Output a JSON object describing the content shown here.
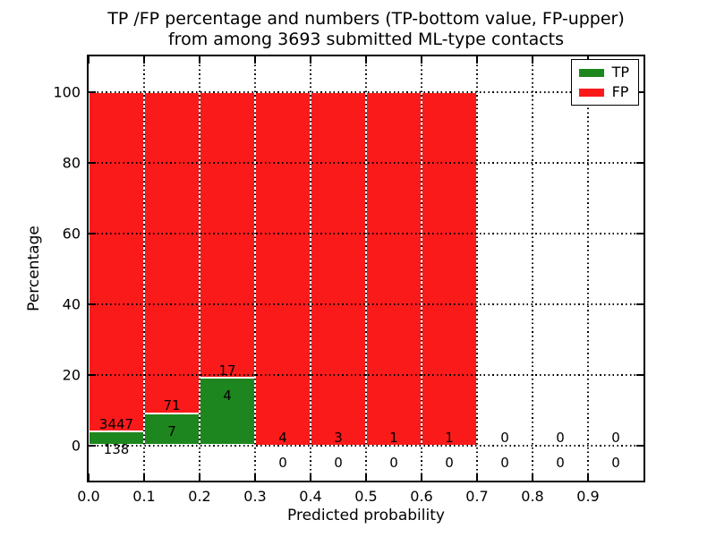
{
  "title": {
    "line1": "TP /FP percentage and numbers (TP-bottom value, FP-upper)",
    "line2": "from among 3693 submitted ML-type contacts"
  },
  "axes": {
    "xlabel": "Predicted probability",
    "ylabel": "Percentage"
  },
  "chart_data": {
    "type": "bar",
    "variant": "stacked-percentage-histogram",
    "title": "TP /FP percentage and numbers (TP-bottom value, FP-upper)\nfrom among 3693 submitted ML-type contacts",
    "xlabel": "Predicted probability",
    "ylabel": "Percentage",
    "total_contacts": 3693,
    "xlim": [
      0.0,
      1.0
    ],
    "ylim": [
      -10,
      110
    ],
    "bin_width": 0.1,
    "bin_starts": [
      0.0,
      0.1,
      0.2,
      0.3,
      0.4,
      0.5,
      0.6,
      0.7,
      0.8,
      0.9
    ],
    "xtick_labels": [
      "0.0",
      "0.1",
      "0.2",
      "0.3",
      "0.4",
      "0.5",
      "0.6",
      "0.7",
      "0.8",
      "0.9"
    ],
    "ytick_values": [
      0,
      20,
      40,
      60,
      80,
      100
    ],
    "ytick_labels": [
      "0",
      "20",
      "40",
      "60",
      "80",
      "100"
    ],
    "grid": {
      "visible": true,
      "linestyle": "dotted",
      "color": "#000000"
    },
    "series": [
      {
        "name": "TP",
        "position": "bottom",
        "color": "#1e861e",
        "counts": [
          138,
          7,
          4,
          0,
          0,
          0,
          0,
          0,
          0,
          0
        ]
      },
      {
        "name": "FP",
        "position": "top",
        "color": "#fb1a1a",
        "counts": [
          3447,
          71,
          17,
          4,
          3,
          1,
          1,
          0,
          0,
          0
        ]
      }
    ],
    "tp_percent_heights": [
      3.85,
      8.97,
      19.05,
      0,
      0,
      0,
      0,
      null,
      null,
      null
    ],
    "fp_percent_heights": [
      96.15,
      91.03,
      80.95,
      100,
      100,
      100,
      100,
      null,
      null,
      null
    ],
    "legend": {
      "position": "upper-right",
      "entries": [
        {
          "label": "TP",
          "color": "#1e861e"
        },
        {
          "label": "FP",
          "color": "#fb1a1a"
        }
      ]
    }
  }
}
